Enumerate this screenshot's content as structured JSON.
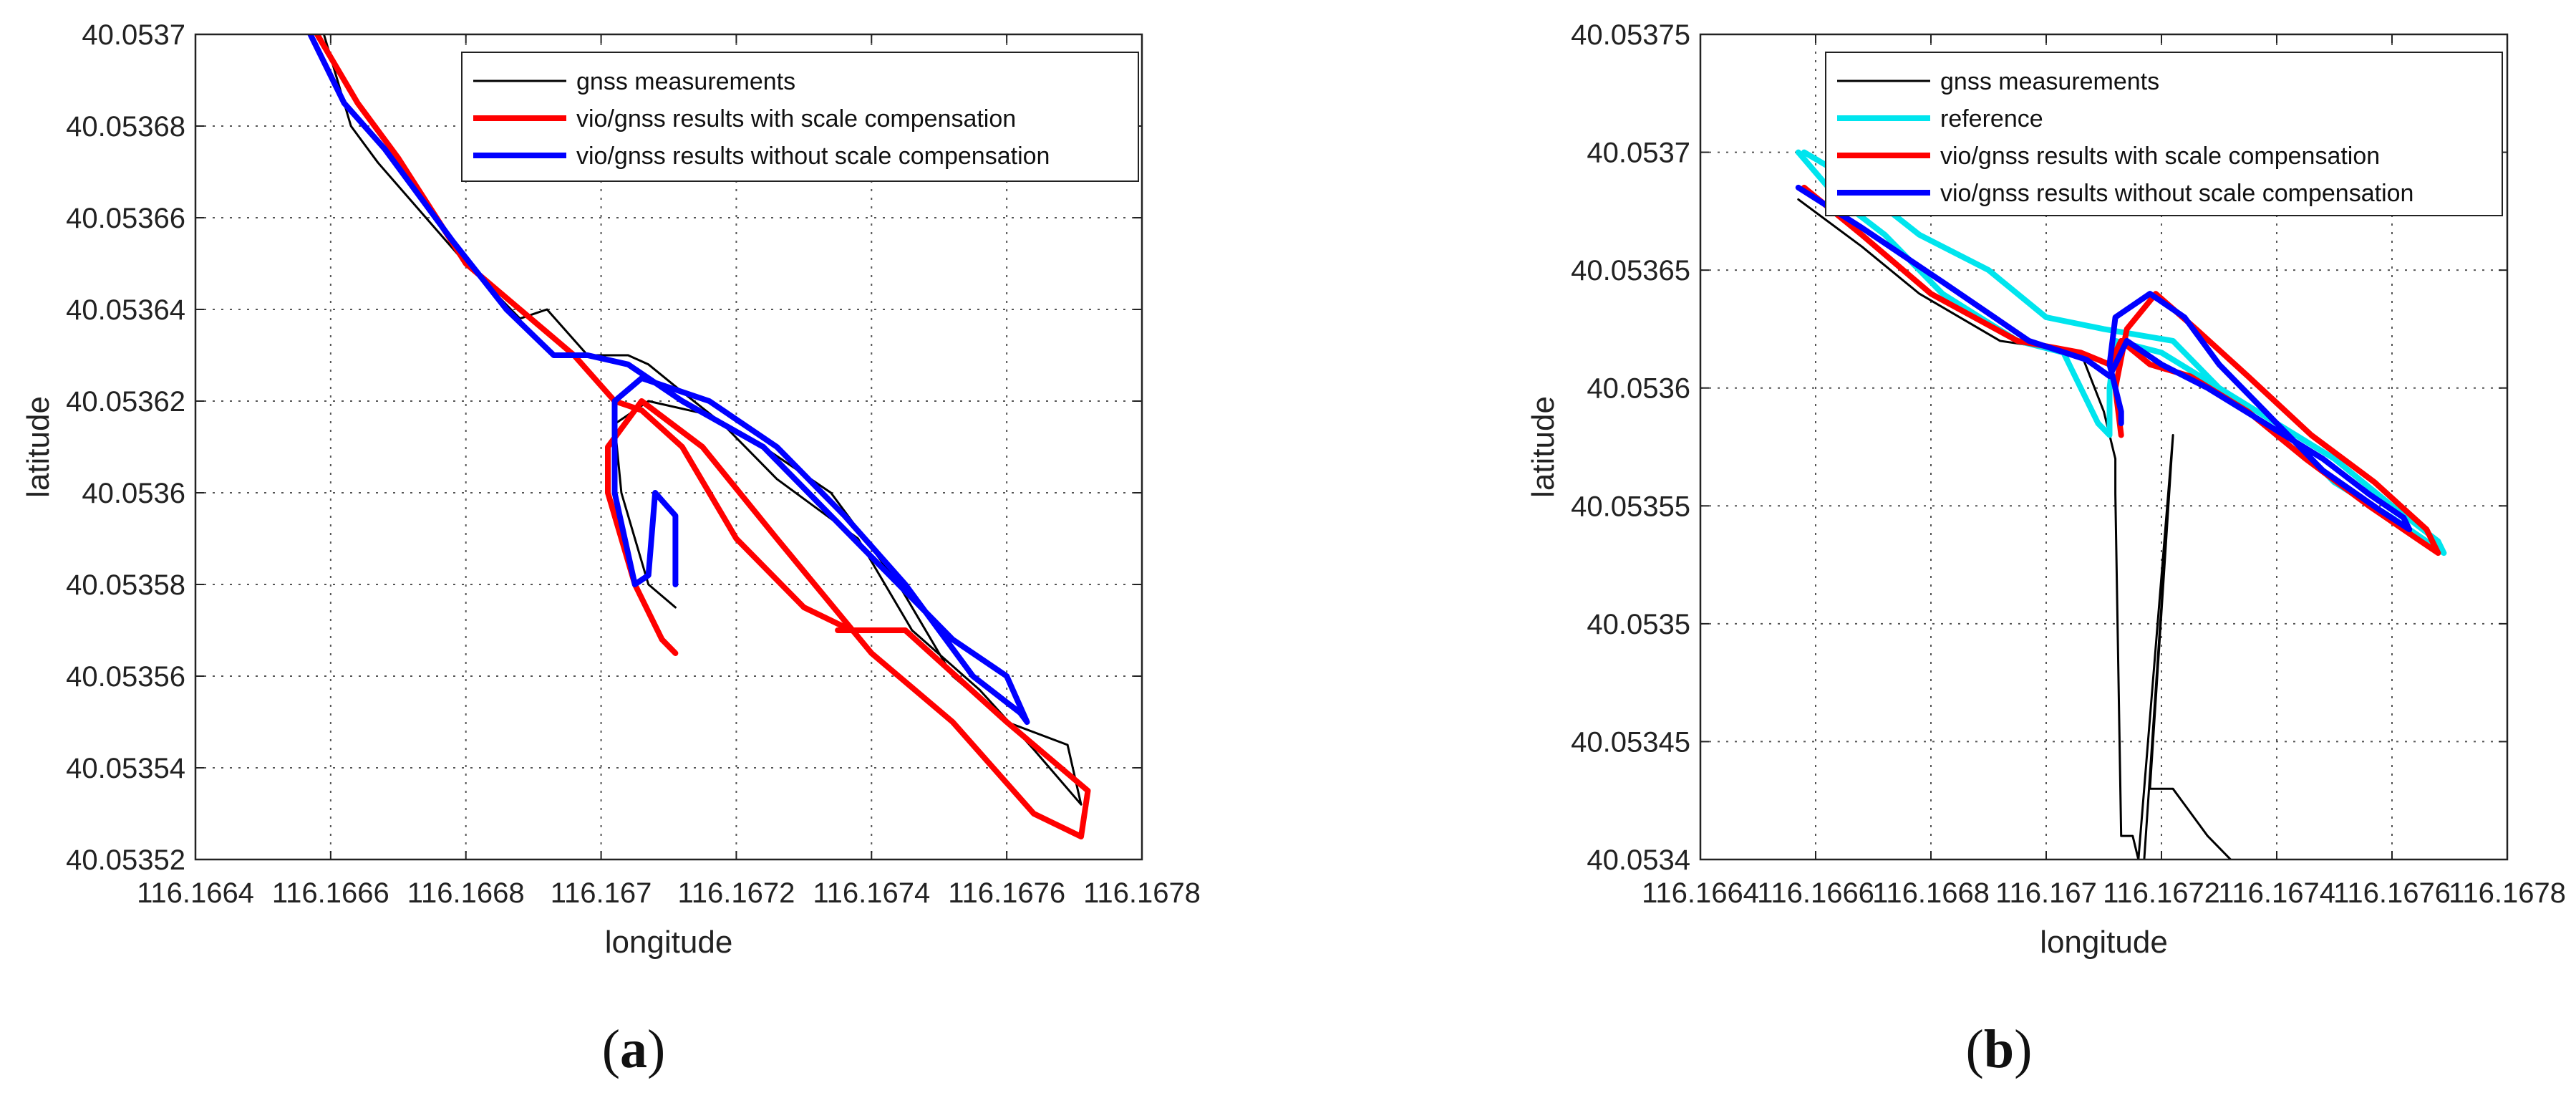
{
  "chart_data": [
    {
      "type": "line",
      "panel_label": "(a)",
      "panel_letter": "a",
      "xlabel": "longitude",
      "ylabel": "latitude",
      "xlim": [
        116.1664,
        116.1678
      ],
      "ylim": [
        40.05352,
        40.0537
      ],
      "xticks": [
        "116.1664",
        "116.1666",
        "116.1668",
        "116.167",
        "116.1672",
        "116.1674",
        "116.1676",
        "116.1678"
      ],
      "yticks": [
        "40.05352",
        "40.05354",
        "40.05356",
        "40.05358",
        "40.0536",
        "40.05362",
        "40.05364",
        "40.05366",
        "40.05368",
        "40.0537"
      ],
      "grid": true,
      "legend_position": "top-right",
      "series": [
        {
          "name": "gnss measurements",
          "color": "#000000",
          "points": [
            [
              116.16659,
              40.0537
            ],
            [
              116.16663,
              40.05368
            ],
            [
              116.16667,
              40.053672
            ],
            [
              116.1668,
              40.05365
            ],
            [
              116.16688,
              40.053638
            ],
            [
              116.16692,
              40.05364
            ],
            [
              116.16698,
              40.05363
            ],
            [
              116.16704,
              40.05363
            ],
            [
              116.16707,
              40.053628
            ],
            [
              116.16712,
              40.053622
            ],
            [
              116.16718,
              40.053615
            ],
            [
              116.16726,
              40.053603
            ],
            [
              116.16738,
              40.05359
            ],
            [
              116.16746,
              40.05357
            ],
            [
              116.16756,
              40.053557
            ],
            [
              116.16764,
              40.053544
            ],
            [
              116.16771,
              40.053532
            ],
            [
              116.16769,
              40.053545
            ],
            [
              116.1676,
              40.05355
            ],
            [
              116.16752,
              40.05356
            ],
            [
              116.16744,
              40.05358
            ],
            [
              116.16734,
              40.0536
            ],
            [
              116.16724,
              40.05361
            ],
            [
              116.16716,
              40.053617
            ],
            [
              116.16707,
              40.05362
            ],
            [
              116.16702,
              40.053615
            ],
            [
              116.16703,
              40.0536
            ],
            [
              116.16707,
              40.05358
            ],
            [
              116.16711,
              40.053575
            ]
          ]
        },
        {
          "name": "vio/gnss results with scale compensation",
          "color": "#ff0000",
          "points": [
            [
              116.16658,
              40.0537
            ],
            [
              116.16664,
              40.053685
            ],
            [
              116.1667,
              40.053673
            ],
            [
              116.1668,
              40.05365
            ],
            [
              116.16688,
              40.05364
            ],
            [
              116.16696,
              40.05363
            ],
            [
              116.16702,
              40.05362
            ],
            [
              116.16706,
              40.053618
            ],
            [
              116.16712,
              40.05361
            ],
            [
              116.1672,
              40.05359
            ],
            [
              116.1673,
              40.053575
            ],
            [
              116.16737,
              40.05357
            ],
            [
              116.16735,
              40.05357
            ],
            [
              116.16745,
              40.05357
            ],
            [
              116.1676,
              40.05355
            ],
            [
              116.16768,
              40.05354
            ],
            [
              116.16772,
              40.053535
            ],
            [
              116.16771,
              40.053525
            ],
            [
              116.16764,
              40.05353
            ],
            [
              116.16752,
              40.05355
            ],
            [
              116.1674,
              40.053565
            ],
            [
              116.16726,
              40.05359
            ],
            [
              116.16715,
              40.05361
            ],
            [
              116.16706,
              40.05362
            ],
            [
              116.16701,
              40.05361
            ],
            [
              116.16701,
              40.0536
            ],
            [
              116.16705,
              40.05358
            ],
            [
              116.16709,
              40.053568
            ],
            [
              116.16711,
              40.053565
            ]
          ]
        },
        {
          "name": "vio/gnss results without scale compensation",
          "color": "#0000ff",
          "points": [
            [
              116.16657,
              40.0537
            ],
            [
              116.16662,
              40.053685
            ],
            [
              116.16668,
              40.053675
            ],
            [
              116.16678,
              40.053655
            ],
            [
              116.16686,
              40.05364
            ],
            [
              116.16693,
              40.05363
            ],
            [
              116.16698,
              40.05363
            ],
            [
              116.16704,
              40.053628
            ],
            [
              116.16712,
              40.05362
            ],
            [
              116.16724,
              40.05361
            ],
            [
              116.16734,
              40.053595
            ],
            [
              116.16744,
              40.05358
            ],
            [
              116.16752,
              40.053568
            ],
            [
              116.1676,
              40.05356
            ],
            [
              116.16763,
              40.05355
            ],
            [
              116.16762,
              40.053552
            ],
            [
              116.16755,
              40.05356
            ],
            [
              116.16745,
              40.05358
            ],
            [
              116.16736,
              40.053595
            ],
            [
              116.16726,
              40.05361
            ],
            [
              116.16716,
              40.05362
            ],
            [
              116.16706,
              40.053625
            ],
            [
              116.16702,
              40.05362
            ],
            [
              116.16702,
              40.0536
            ],
            [
              116.16705,
              40.05358
            ],
            [
              116.16707,
              40.053582
            ],
            [
              116.16708,
              40.0536
            ],
            [
              116.16711,
              40.053595
            ],
            [
              116.16711,
              40.05358
            ]
          ]
        }
      ]
    },
    {
      "type": "line",
      "panel_label": "(b)",
      "panel_letter": "b",
      "xlabel": "longitude",
      "ylabel": "latitude",
      "xlim": [
        116.1664,
        116.1678
      ],
      "ylim": [
        40.0534,
        40.05375
      ],
      "xticks": [
        "116.1664",
        "116.1666",
        "116.1668",
        "116.167",
        "116.1672",
        "116.1674",
        "116.1676",
        "116.1678"
      ],
      "yticks": [
        "40.0534",
        "40.05345",
        "40.0535",
        "40.05355",
        "40.0536",
        "40.05365",
        "40.0537",
        "40.05375"
      ],
      "grid": true,
      "legend_position": "top-right",
      "series": [
        {
          "name": "gnss measurements",
          "color": "#000000",
          "points": [
            [
              116.16657,
              40.05368
            ],
            [
              116.16668,
              40.05366
            ],
            [
              116.16678,
              40.05364
            ],
            [
              116.16692,
              40.05362
            ],
            [
              116.16706,
              40.053615
            ],
            [
              116.1671,
              40.05359
            ],
            [
              116.16712,
              40.05357
            ],
            [
              116.16712,
              40.053555
            ],
            [
              116.16713,
              40.05341
            ],
            [
              116.16715,
              40.05341
            ],
            [
              116.16716,
              40.0534
            ],
            [
              116.16722,
              40.05358
            ],
            [
              116.16717,
              40.0534
            ],
            [
              116.16722,
              40.05358
            ],
            [
              116.16718,
              40.05343
            ],
            [
              116.16722,
              40.05343
            ],
            [
              116.16728,
              40.05341
            ],
            [
              116.16732,
              40.0534
            ]
          ]
        },
        {
          "name": "reference",
          "color": "#00e5ee",
          "points": [
            [
              116.16657,
              40.0537
            ],
            [
              116.16664,
              40.05368
            ],
            [
              116.16672,
              40.053665
            ],
            [
              116.16682,
              40.05364
            ],
            [
              116.16695,
              40.05362
            ],
            [
              116.16703,
              40.053615
            ],
            [
              116.16706,
              40.0536
            ],
            [
              116.16709,
              40.053585
            ],
            [
              116.16711,
              40.05358
            ],
            [
              116.16711,
              40.0536
            ],
            [
              116.16712,
              40.05362
            ],
            [
              116.1672,
              40.053615
            ],
            [
              116.1673,
              40.0536
            ],
            [
              116.1674,
              40.053585
            ],
            [
              116.1675,
              40.05356
            ],
            [
              116.1676,
              40.053545
            ],
            [
              116.16769,
              40.05353
            ],
            [
              116.16768,
              40.053535
            ],
            [
              116.1676,
              40.05355
            ],
            [
              116.1675,
              40.05357
            ],
            [
              116.1674,
              40.053585
            ],
            [
              116.1673,
              40.0536
            ],
            [
              116.16722,
              40.05362
            ],
            [
              116.1671,
              40.053625
            ],
            [
              116.167,
              40.05363
            ],
            [
              116.1669,
              40.05365
            ],
            [
              116.16678,
              40.053665
            ],
            [
              116.16665,
              40.05369
            ],
            [
              116.16658,
              40.0537
            ]
          ]
        },
        {
          "name": "vio/gnss results with scale compensation",
          "color": "#ff0000",
          "points": [
            [
              116.16658,
              40.053685
            ],
            [
              116.16668,
              40.053665
            ],
            [
              116.1668,
              40.05364
            ],
            [
              116.16695,
              40.05362
            ],
            [
              116.16706,
              40.053615
            ],
            [
              116.16711,
              40.05361
            ],
            [
              116.16713,
              40.05362
            ],
            [
              116.16718,
              40.05361
            ],
            [
              116.16725,
              40.053605
            ],
            [
              116.16735,
              40.05359
            ],
            [
              116.16745,
              40.05357
            ],
            [
              116.16756,
              40.05355
            ],
            [
              116.16765,
              40.053535
            ],
            [
              116.16768,
              40.05353
            ],
            [
              116.16766,
              40.05354
            ],
            [
              116.16757,
              40.05356
            ],
            [
              116.16746,
              40.05358
            ],
            [
              116.16735,
              40.053605
            ],
            [
              116.16726,
              40.053625
            ],
            [
              116.16719,
              40.05364
            ],
            [
              116.16714,
              40.053625
            ],
            [
              116.16712,
              40.0536
            ],
            [
              116.16713,
              40.05358
            ]
          ]
        },
        {
          "name": "vio/gnss results without scale compensation",
          "color": "#0000ff",
          "points": [
            [
              116.16657,
              40.053685
            ],
            [
              116.16668,
              40.053668
            ],
            [
              116.16682,
              40.053645
            ],
            [
              116.16697,
              40.05362
            ],
            [
              116.16707,
              40.053612
            ],
            [
              116.16711,
              40.053605
            ],
            [
              116.16714,
              40.05362
            ],
            [
              116.1672,
              40.05361
            ],
            [
              116.16728,
              40.0536
            ],
            [
              116.16738,
              40.053585
            ],
            [
              116.16748,
              40.05357
            ],
            [
              116.16756,
              40.053555
            ],
            [
              116.16762,
              40.053545
            ],
            [
              116.16763,
              40.05354
            ],
            [
              116.16758,
              40.053548
            ],
            [
              116.16748,
              40.053565
            ],
            [
              116.16738,
              40.05359
            ],
            [
              116.1673,
              40.05361
            ],
            [
              116.16724,
              40.05363
            ],
            [
              116.16718,
              40.05364
            ],
            [
              116.16712,
              40.05363
            ],
            [
              116.16711,
              40.05361
            ],
            [
              116.16713,
              40.05359
            ],
            [
              116.16713,
              40.053585
            ]
          ]
        }
      ]
    }
  ]
}
